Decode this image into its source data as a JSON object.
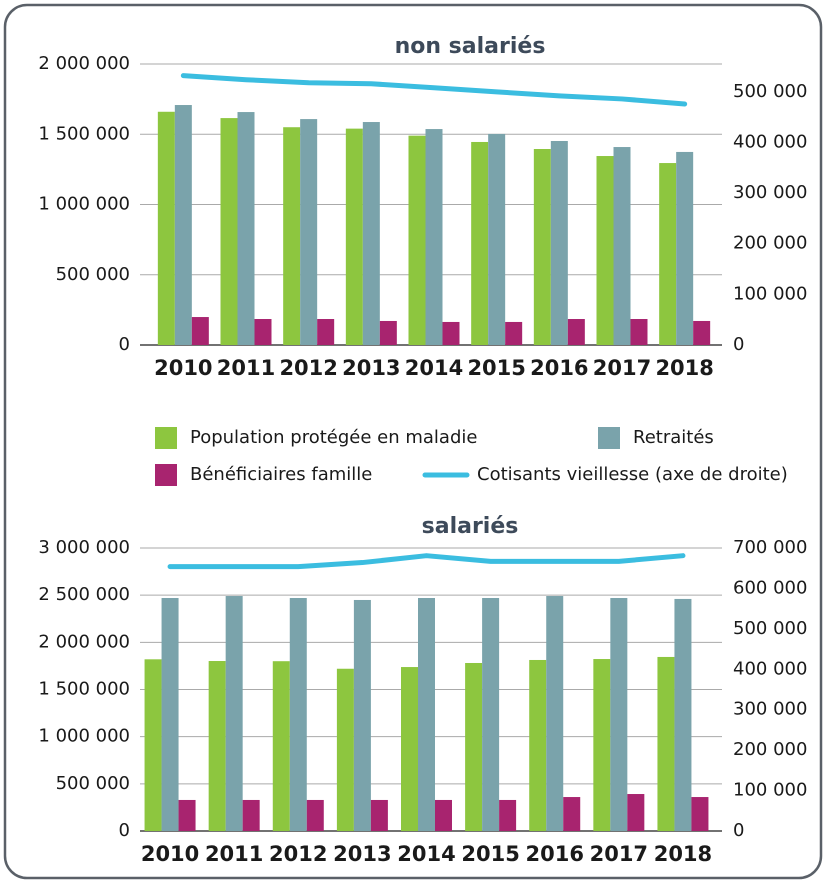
{
  "chart_data": [
    {
      "type": "bar",
      "title": "non salariés",
      "categories": [
        "2010",
        "2011",
        "2012",
        "2013",
        "2014",
        "2015",
        "2016",
        "2017",
        "2018"
      ],
      "series": [
        {
          "name": "Population protégée en maladie",
          "color": "#8dc63f",
          "values": [
            1660000,
            1615000,
            1550000,
            1540000,
            1490000,
            1445000,
            1395000,
            1345000,
            1295000
          ]
        },
        {
          "name": "Retraités",
          "color": "#7aa3ab",
          "values": [
            1708000,
            1658000,
            1608000,
            1587000,
            1537000,
            1502000,
            1452000,
            1409000,
            1374000
          ]
        },
        {
          "name": "Bénéficiaires famille",
          "color": "#a8246f",
          "values": [
            199000,
            185000,
            185000,
            171000,
            164000,
            164000,
            185000,
            185000,
            171000
          ]
        },
        {
          "name": "Cotisants vieillesse (axe de droite)",
          "color": "#3bbde0",
          "axis": "y2",
          "type": "line",
          "values": [
            532000,
            524000,
            518000,
            516000,
            508000,
            500000,
            492000,
            486000,
            476000
          ]
        }
      ],
      "ylim": [
        0,
        2000000
      ],
      "yticks": [
        0,
        {
          "value": 500000,
          "label": "500 000"
        },
        {
          "value": 1000000,
          "label": "1 000 000"
        },
        {
          "value": 1500000,
          "label": "1 500 000"
        },
        {
          "value": 2000000,
          "label": "2 000 000"
        }
      ],
      "y2lim": [
        0,
        555000
      ],
      "y2ticks": [
        0,
        {
          "value": 100000,
          "label": "100 000"
        },
        {
          "value": 200000,
          "label": "200 000"
        },
        {
          "value": 300000,
          "label": "300 000"
        },
        {
          "value": 400000,
          "label": "400 000"
        },
        {
          "value": 500000,
          "label": "500 000"
        }
      ],
      "grid": true
    },
    {
      "type": "bar",
      "title": "salariés",
      "categories": [
        "2010",
        "2011",
        "2012",
        "2013",
        "2014",
        "2015",
        "2016",
        "2017",
        "2018"
      ],
      "series": [
        {
          "color": "#8dc63f",
          "values": [
            1820000,
            1802000,
            1800000,
            1720000,
            1738000,
            1781000,
            1813000,
            1823000,
            1845000
          ]
        },
        {
          "color": "#7aa3ab",
          "values": [
            2470000,
            2491000,
            2470000,
            2449000,
            2470000,
            2470000,
            2491000,
            2470000,
            2460000
          ]
        },
        {
          "color": "#a8246f",
          "values": [
            329000,
            329000,
            329000,
            329000,
            329000,
            329000,
            360000,
            392000,
            360000
          ]
        },
        {
          "color": "#3bbde0",
          "axis": "y2",
          "type": "line",
          "values": [
            654000,
            654000,
            654000,
            664000,
            681000,
            667000,
            667000,
            667000,
            681000
          ]
        }
      ],
      "ylim": [
        0,
        3000000
      ],
      "yticks": [
        0,
        {
          "value": 500000,
          "label": "500 000"
        },
        {
          "value": 1000000,
          "label": "1 000 000"
        },
        {
          "value": 1500000,
          "label": "1 500 000"
        },
        {
          "value": 2000000,
          "label": "2 000 000"
        },
        {
          "value": 2500000,
          "label": "2 500 000"
        },
        {
          "value": 3000000,
          "label": "3 000 000"
        }
      ],
      "y2lim": [
        0,
        700000
      ],
      "y2ticks": [
        0,
        {
          "value": 100000,
          "label": "100 000"
        },
        {
          "value": 200000,
          "label": "200 000"
        },
        {
          "value": 300000,
          "label": "300 000"
        },
        {
          "value": 400000,
          "label": "400 000"
        },
        {
          "value": 500000,
          "label": "500 000"
        },
        {
          "value": 600000,
          "label": "600 000"
        },
        {
          "value": 700000,
          "label": "700 000"
        }
      ],
      "grid": true
    }
  ]
}
